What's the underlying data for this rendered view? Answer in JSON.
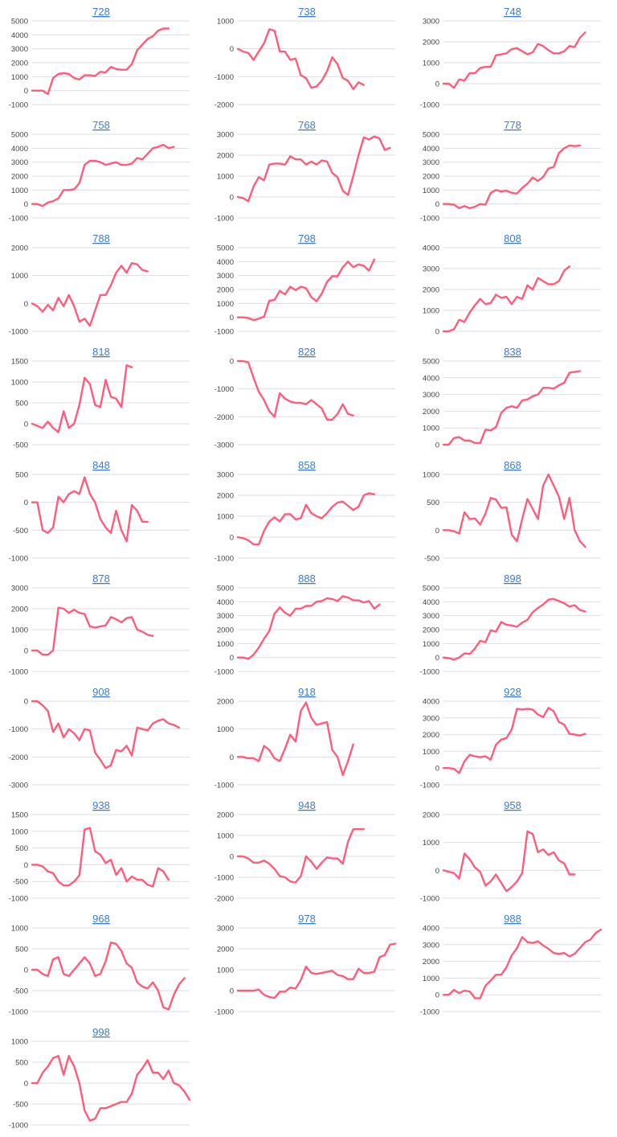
{
  "style": {
    "line_color": "#ff5c7c",
    "title_color": "#3b7bd4"
  },
  "chart_data": [
    {
      "type": "line",
      "title": "728",
      "ylim": [
        -1000,
        5000
      ],
      "yticks": [
        -1000,
        0,
        1000,
        2000,
        3000,
        4000,
        5000
      ],
      "values": [
        0,
        0,
        0,
        -250,
        900,
        1200,
        1250,
        1200,
        900,
        800,
        1100,
        1100,
        1050,
        1350,
        1300,
        1700,
        1550,
        1500,
        1500,
        1900,
        2900,
        3300,
        3700,
        3900,
        4300,
        4450,
        4450
      ]
    },
    {
      "type": "line",
      "title": "738",
      "ylim": [
        -2000,
        1000
      ],
      "yticks": [
        -2000,
        -1000,
        0,
        1000
      ],
      "values": [
        0,
        -100,
        -150,
        -400,
        -100,
        200,
        700,
        650,
        -100,
        -100,
        -400,
        -350,
        -950,
        -1050,
        -1400,
        -1350,
        -1150,
        -800,
        -300,
        -550,
        -1050,
        -1150,
        -1450,
        -1200,
        -1300
      ]
    },
    {
      "type": "line",
      "title": "748",
      "ylim": [
        -1000,
        3000
      ],
      "yticks": [
        -1000,
        0,
        1000,
        2000,
        3000
      ],
      "values": [
        0,
        0,
        -200,
        200,
        150,
        500,
        500,
        750,
        800,
        800,
        1350,
        1400,
        1450,
        1650,
        1700,
        1550,
        1400,
        1500,
        1900,
        1800,
        1600,
        1450,
        1450,
        1550,
        1800,
        1750,
        2200,
        2450
      ]
    },
    {
      "type": "line",
      "title": "758",
      "ylim": [
        -1000,
        5000
      ],
      "yticks": [
        -1000,
        0,
        1000,
        2000,
        3000,
        4000,
        5000
      ],
      "values": [
        0,
        0,
        -150,
        100,
        200,
        400,
        1000,
        1000,
        1050,
        1500,
        2800,
        3100,
        3100,
        3000,
        2800,
        2900,
        3000,
        2800,
        2800,
        2900,
        3300,
        3200,
        3600,
        4000,
        4100,
        4250,
        4000,
        4100
      ]
    },
    {
      "type": "line",
      "title": "768",
      "ylim": [
        -1000,
        3000
      ],
      "yticks": [
        -1000,
        0,
        1000,
        2000,
        3000
      ],
      "values": [
        0,
        -50,
        -200,
        500,
        950,
        800,
        1550,
        1600,
        1600,
        1550,
        1950,
        1800,
        1800,
        1550,
        1700,
        1550,
        1750,
        1700,
        1150,
        950,
        300,
        100,
        1000,
        2000,
        2850,
        2750,
        2900,
        2800,
        2250,
        2350
      ]
    },
    {
      "type": "line",
      "title": "778",
      "ylim": [
        -1000,
        5000
      ],
      "yticks": [
        -1000,
        0,
        1000,
        2000,
        3000,
        4000,
        5000
      ],
      "values": [
        0,
        0,
        -50,
        -300,
        -150,
        -300,
        -200,
        0,
        -50,
        800,
        1000,
        900,
        950,
        800,
        750,
        1150,
        1450,
        1900,
        1650,
        1950,
        2550,
        2650,
        3650,
        4000,
        4200,
        4150,
        4200
      ]
    },
    {
      "type": "line",
      "title": "788",
      "ylim": [
        -1000,
        2000
      ],
      "yticks": [
        -1000,
        0,
        1000,
        2000
      ],
      "values": [
        0,
        -100,
        -300,
        -50,
        -250,
        200,
        -100,
        300,
        -100,
        -650,
        -550,
        -800,
        -250,
        300,
        300,
        650,
        1100,
        1350,
        1100,
        1450,
        1400,
        1200,
        1150
      ]
    },
    {
      "type": "line",
      "title": "798",
      "ylim": [
        -1000,
        5000
      ],
      "yticks": [
        -1000,
        0,
        1000,
        2000,
        3000,
        4000,
        5000
      ],
      "values": [
        0,
        0,
        -50,
        -200,
        -100,
        50,
        1200,
        1250,
        1900,
        1650,
        2200,
        1950,
        2200,
        2100,
        1450,
        1150,
        1700,
        2550,
        2950,
        2950,
        3600,
        4000,
        3600,
        3800,
        3700,
        3350,
        4150
      ]
    },
    {
      "type": "line",
      "title": "808",
      "ylim": [
        0,
        4000
      ],
      "yticks": [
        0,
        1000,
        2000,
        3000,
        4000
      ],
      "values": [
        0,
        0,
        100,
        550,
        450,
        900,
        1250,
        1550,
        1300,
        1350,
        1750,
        1600,
        1650,
        1300,
        1650,
        1550,
        2200,
        2000,
        2550,
        2400,
        2250,
        2250,
        2400,
        2900,
        3100
      ]
    },
    {
      "type": "line",
      "title": "818",
      "ylim": [
        -500,
        1500
      ],
      "yticks": [
        -500,
        0,
        500,
        1000,
        1500
      ],
      "values": [
        0,
        -50,
        -100,
        50,
        -100,
        -200,
        300,
        -100,
        0,
        450,
        1100,
        950,
        450,
        400,
        1050,
        650,
        600,
        400,
        1400,
        1350
      ]
    },
    {
      "type": "line",
      "title": "828",
      "ylim": [
        -3000,
        0
      ],
      "yticks": [
        -3000,
        -2000,
        -1000,
        0
      ],
      "values": [
        0,
        0,
        -50,
        -600,
        -1100,
        -1400,
        -1800,
        -2000,
        -1150,
        -1350,
        -1450,
        -1500,
        -1500,
        -1550,
        -1400,
        -1550,
        -1700,
        -2100,
        -2100,
        -1900,
        -1550,
        -1900,
        -1950
      ]
    },
    {
      "type": "line",
      "title": "838",
      "ylim": [
        0,
        5000
      ],
      "yticks": [
        0,
        1000,
        2000,
        3000,
        4000,
        5000
      ],
      "values": [
        0,
        0,
        400,
        450,
        250,
        250,
        100,
        100,
        900,
        850,
        1050,
        1900,
        2200,
        2300,
        2200,
        2650,
        2700,
        2900,
        3000,
        3400,
        3400,
        3350,
        3550,
        3700,
        4300,
        4350,
        4400
      ]
    },
    {
      "type": "line",
      "title": "848",
      "ylim": [
        -1000,
        500
      ],
      "yticks": [
        -1000,
        -500,
        0,
        500
      ],
      "values": [
        0,
        0,
        -500,
        -550,
        -450,
        100,
        0,
        150,
        200,
        150,
        450,
        150,
        0,
        -300,
        -450,
        -550,
        -150,
        -500,
        -700,
        -50,
        -150,
        -350,
        -350
      ]
    },
    {
      "type": "line",
      "title": "858",
      "ylim": [
        -1000,
        3000
      ],
      "yticks": [
        -1000,
        0,
        1000,
        2000,
        3000
      ],
      "values": [
        0,
        -50,
        -150,
        -350,
        -350,
        300,
        750,
        950,
        750,
        1100,
        1100,
        850,
        900,
        1550,
        1150,
        1000,
        900,
        1150,
        1450,
        1650,
        1700,
        1500,
        1300,
        1450,
        2000,
        2100,
        2050
      ]
    },
    {
      "type": "line",
      "title": "868",
      "ylim": [
        -500,
        1000
      ],
      "yticks": [
        -500,
        0,
        500,
        1000
      ],
      "values": [
        0,
        0,
        -20,
        -60,
        320,
        200,
        210,
        100,
        300,
        580,
        550,
        400,
        410,
        -80,
        -200,
        200,
        560,
        380,
        200,
        800,
        1000,
        800,
        600,
        200,
        580,
        0,
        -200,
        -300
      ]
    },
    {
      "type": "line",
      "title": "878",
      "ylim": [
        -1000,
        3000
      ],
      "yticks": [
        -1000,
        0,
        1000,
        2000,
        3000
      ],
      "values": [
        0,
        0,
        -200,
        -200,
        0,
        2050,
        2000,
        1800,
        1950,
        1800,
        1750,
        1150,
        1100,
        1150,
        1200,
        1600,
        1500,
        1350,
        1550,
        1600,
        1000,
        900,
        750,
        700
      ]
    },
    {
      "type": "line",
      "title": "888",
      "ylim": [
        -1000,
        5000
      ],
      "yticks": [
        -1000,
        0,
        1000,
        2000,
        3000,
        4000,
        5000
      ],
      "values": [
        0,
        0,
        -100,
        200,
        700,
        1350,
        1900,
        3150,
        3600,
        3200,
        3000,
        3500,
        3500,
        3700,
        3700,
        4000,
        4050,
        4250,
        4200,
        4050,
        4400,
        4300,
        4100,
        4100,
        3950,
        4050,
        3500,
        3800
      ]
    },
    {
      "type": "line",
      "title": "898",
      "ylim": [
        -1000,
        5000
      ],
      "yticks": [
        -1000,
        0,
        1000,
        2000,
        3000,
        4000,
        5000
      ],
      "values": [
        0,
        -50,
        -150,
        0,
        300,
        250,
        650,
        1200,
        1100,
        1950,
        1850,
        2550,
        2350,
        2300,
        2200,
        2500,
        2700,
        3250,
        3550,
        3800,
        4150,
        4200,
        4050,
        3900,
        3650,
        3750,
        3400,
        3300
      ]
    },
    {
      "type": "line",
      "title": "908",
      "ylim": [
        -3000,
        0
      ],
      "yticks": [
        -3000,
        -2000,
        -1000,
        0
      ],
      "values": [
        0,
        0,
        -150,
        -350,
        -1100,
        -800,
        -1300,
        -1000,
        -1150,
        -1400,
        -1000,
        -1050,
        -1850,
        -2100,
        -2400,
        -2300,
        -1750,
        -1800,
        -1600,
        -1950,
        -950,
        -1000,
        -1050,
        -800,
        -700,
        -650,
        -800,
        -850,
        -950
      ]
    },
    {
      "type": "line",
      "title": "918",
      "ylim": [
        -1000,
        2000
      ],
      "yticks": [
        -1000,
        0,
        1000,
        2000
      ],
      "values": [
        0,
        0,
        -50,
        -50,
        -150,
        400,
        250,
        -50,
        -150,
        300,
        800,
        550,
        1650,
        1950,
        1400,
        1150,
        1200,
        1250,
        250,
        0,
        -650,
        -150,
        450
      ]
    },
    {
      "type": "line",
      "title": "928",
      "ylim": [
        -1000,
        4000
      ],
      "yticks": [
        -1000,
        0,
        1000,
        2000,
        3000,
        4000
      ],
      "values": [
        0,
        0,
        -50,
        -300,
        400,
        800,
        700,
        650,
        700,
        500,
        1400,
        1700,
        1800,
        2300,
        3550,
        3500,
        3550,
        3500,
        3200,
        3050,
        3600,
        3400,
        2750,
        2600,
        2050,
        2000,
        1950,
        2050
      ]
    },
    {
      "type": "line",
      "title": "938",
      "ylim": [
        -1000,
        1500
      ],
      "yticks": [
        -1000,
        -500,
        0,
        500,
        1000,
        1500
      ],
      "values": [
        0,
        0,
        -50,
        -200,
        -250,
        -500,
        -620,
        -620,
        -500,
        -320,
        1050,
        1100,
        400,
        300,
        50,
        150,
        -300,
        -100,
        -500,
        -350,
        -450,
        -450,
        -600,
        -650,
        -100,
        -200,
        -450
      ]
    },
    {
      "type": "line",
      "title": "948",
      "ylim": [
        -2000,
        2000
      ],
      "yticks": [
        -2000,
        -1000,
        0,
        1000,
        2000
      ],
      "values": [
        0,
        0,
        -100,
        -300,
        -300,
        -200,
        -350,
        -600,
        -950,
        -1000,
        -1200,
        -1250,
        -950,
        0,
        -250,
        -600,
        -300,
        -50,
        -100,
        -100,
        -350,
        700,
        1300,
        1300,
        1300
      ]
    },
    {
      "type": "line",
      "title": "958",
      "ylim": [
        -1000,
        2000
      ],
      "yticks": [
        -1000,
        0,
        1000,
        2000
      ],
      "values": [
        0,
        -50,
        -100,
        -300,
        600,
        400,
        100,
        -50,
        -550,
        -400,
        -150,
        -450,
        -750,
        -600,
        -400,
        -100,
        1400,
        1300,
        650,
        750,
        550,
        650,
        350,
        250,
        -150,
        -150
      ]
    },
    {
      "type": "line",
      "title": "968",
      "ylim": [
        -1000,
        1000
      ],
      "yticks": [
        -1000,
        -500,
        0,
        500,
        1000
      ],
      "values": [
        0,
        0,
        -100,
        -150,
        250,
        300,
        -100,
        -150,
        0,
        150,
        300,
        150,
        -150,
        -100,
        200,
        650,
        620,
        450,
        150,
        50,
        -300,
        -400,
        -450,
        -300,
        -500,
        -900,
        -950,
        -600,
        -350,
        -200
      ]
    },
    {
      "type": "line",
      "title": "978",
      "ylim": [
        -1000,
        3000
      ],
      "yticks": [
        -1000,
        0,
        1000,
        2000,
        3000
      ],
      "values": [
        0,
        0,
        0,
        0,
        50,
        -200,
        -300,
        -350,
        -50,
        -50,
        150,
        100,
        500,
        1150,
        850,
        800,
        850,
        900,
        950,
        750,
        700,
        550,
        550,
        1050,
        850,
        850,
        900,
        1600,
        1700,
        2200,
        2250
      ]
    },
    {
      "type": "line",
      "title": "988",
      "ylim": [
        -1000,
        4000
      ],
      "yticks": [
        -1000,
        0,
        1000,
        2000,
        3000,
        4000
      ],
      "values": [
        0,
        0,
        300,
        100,
        250,
        200,
        -200,
        -200,
        550,
        850,
        1200,
        1200,
        1650,
        2350,
        2800,
        3450,
        3150,
        3100,
        3200,
        2950,
        2750,
        2500,
        2450,
        2500,
        2300,
        2450,
        2800,
        3150,
        3300,
        3700,
        3900
      ]
    },
    {
      "type": "line",
      "title": "998",
      "ylim": [
        -1000,
        1000
      ],
      "yticks": [
        -1000,
        -500,
        0,
        500,
        1000
      ],
      "values": [
        0,
        0,
        250,
        400,
        600,
        650,
        200,
        650,
        400,
        0,
        -650,
        -900,
        -850,
        -600,
        -600,
        -550,
        -500,
        -450,
        -450,
        -250,
        200,
        350,
        550,
        250,
        250,
        100,
        300,
        0,
        -50,
        -200,
        -400
      ]
    }
  ]
}
